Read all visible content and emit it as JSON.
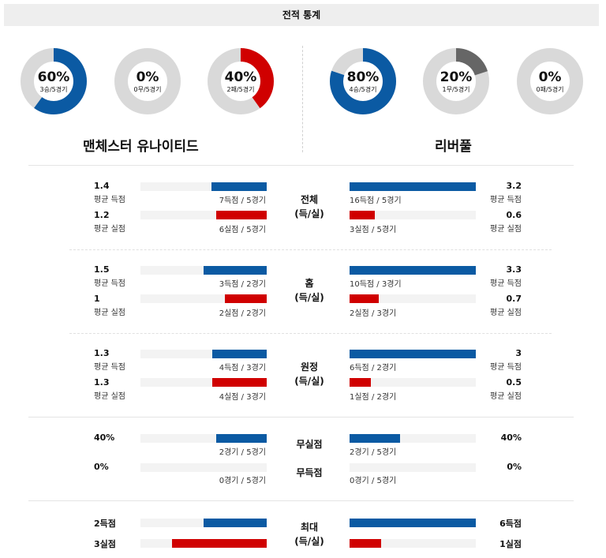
{
  "header": {
    "title": "전적 통계"
  },
  "donuts": [
    {
      "pct": "60%",
      "sub": "3승/5경기",
      "value": 60,
      "color": "#0b5aa3"
    },
    {
      "pct": "0%",
      "sub": "0무/5경기",
      "value": 0,
      "color": "#666666"
    },
    {
      "pct": "40%",
      "sub": "2패/5경기",
      "value": 40,
      "color": "#d00000"
    },
    {
      "pct": "80%",
      "sub": "4승/5경기",
      "value": 80,
      "color": "#0b5aa3"
    },
    {
      "pct": "20%",
      "sub": "1무/5경기",
      "value": 20,
      "color": "#666666"
    },
    {
      "pct": "0%",
      "sub": "0패/5경기",
      "value": 0,
      "color": "#d00000"
    }
  ],
  "teams": {
    "home": "맨체스터 유나이티드",
    "away": "리버풀"
  },
  "labels": {
    "avg_scored": "평균 득점",
    "avg_conceded": "평균 실점"
  },
  "sections": {
    "overall": {
      "label_line1": "전체",
      "label_line2": "(득/실)",
      "home_scored": {
        "value": "1.4",
        "caption": "7득점 / 5경기",
        "ratio": 0.44
      },
      "home_conceded": {
        "value": "1.2",
        "caption": "6실점 / 5경기",
        "ratio": 0.4
      },
      "away_scored": {
        "value": "3.2",
        "caption": "16득점 / 5경기",
        "ratio": 1.0
      },
      "away_conceded": {
        "value": "0.6",
        "caption": "3실점 / 5경기",
        "ratio": 0.2
      }
    },
    "home": {
      "label_line1": "홈",
      "label_line2": "(득/실)",
      "home_scored": {
        "value": "1.5",
        "caption": "3득점 / 2경기",
        "ratio": 0.5
      },
      "home_conceded": {
        "value": "1",
        "caption": "2실점 / 2경기",
        "ratio": 0.33
      },
      "away_scored": {
        "value": "3.3",
        "caption": "10득점 / 3경기",
        "ratio": 1.0
      },
      "away_conceded": {
        "value": "0.7",
        "caption": "2실점 / 3경기",
        "ratio": 0.23
      }
    },
    "away": {
      "label_line1": "원정",
      "label_line2": "(득/실)",
      "home_scored": {
        "value": "1.3",
        "caption": "4득점 / 3경기",
        "ratio": 0.43
      },
      "home_conceded": {
        "value": "1.3",
        "caption": "4실점 / 3경기",
        "ratio": 0.43
      },
      "away_scored": {
        "value": "3",
        "caption": "6득점 / 2경기",
        "ratio": 1.0
      },
      "away_conceded": {
        "value": "0.5",
        "caption": "1실점 / 2경기",
        "ratio": 0.17
      }
    },
    "clean_sheet": {
      "label": "무실점",
      "home": {
        "value": "40%",
        "caption": "2경기 / 5경기",
        "ratio": 0.4
      },
      "away": {
        "value": "40%",
        "caption": "2경기 / 5경기",
        "ratio": 0.4
      }
    },
    "failed_to_score": {
      "label": "무득점",
      "home": {
        "value": "0%",
        "caption": "0경기 / 5경기",
        "ratio": 0
      },
      "away": {
        "value": "0%",
        "caption": "0경기 / 5경기",
        "ratio": 0
      }
    },
    "max": {
      "label_line1": "최대",
      "label_line2": "(득/실)",
      "home_scored": {
        "value": "2득점",
        "ratio": 0.5
      },
      "home_conceded": {
        "value": "3실점",
        "ratio": 0.75
      },
      "away_scored": {
        "value": "6득점",
        "ratio": 1.0
      },
      "away_conceded": {
        "value": "1실점",
        "ratio": 0.25
      }
    }
  },
  "colors": {
    "scored": "#0b5aa3",
    "conceded": "#d00000",
    "track": "#f3f3f3",
    "ring": "#d9d9d9"
  }
}
